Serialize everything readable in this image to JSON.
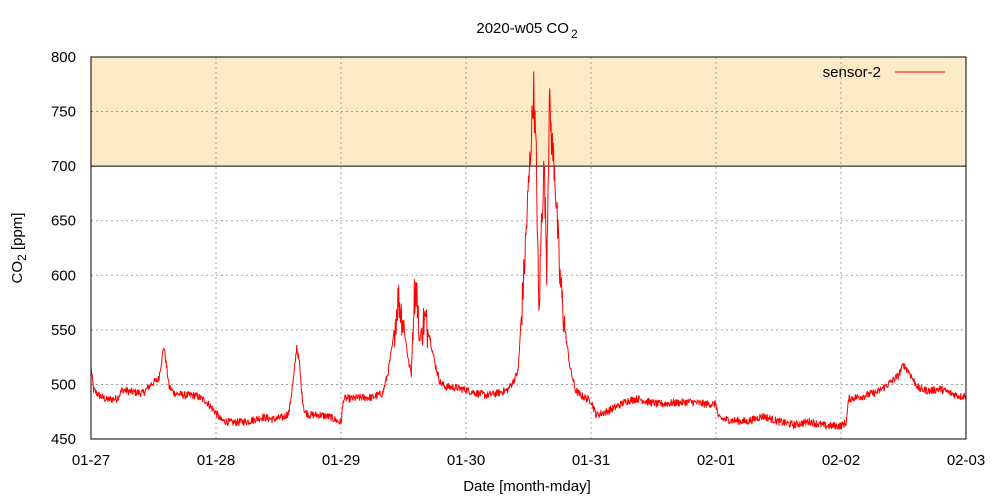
{
  "chart_data": {
    "type": "line",
    "title": "2020-w05 CO",
    "title_subscript": "2",
    "xlabel": "Date [month-mday]",
    "ylabel_main": "CO",
    "ylabel_subscript": "2",
    "ylabel_suffix": " [ppm]",
    "xlim": [
      "2020-01-27",
      "2020-02-03"
    ],
    "ylim": [
      450,
      800
    ],
    "x_ticks": [
      "01-27",
      "01-28",
      "01-29",
      "01-30",
      "01-31",
      "02-01",
      "02-02",
      "02-03"
    ],
    "y_ticks": [
      450,
      500,
      550,
      600,
      650,
      700,
      750,
      800
    ],
    "grid": true,
    "legend_position": "top-right",
    "threshold": {
      "from": 700,
      "to": 800,
      "color": "#fdebc8"
    },
    "threshold_line": 700,
    "series": [
      {
        "name": "sensor-2",
        "color": "#ff0000",
        "points": [
          [
            "2020-01-27 00:00",
            515
          ],
          [
            "2020-01-27 00:30",
            495
          ],
          [
            "2020-01-27 01:30",
            490
          ],
          [
            "2020-01-27 03:00",
            486
          ],
          [
            "2020-01-27 05:00",
            487
          ],
          [
            "2020-01-27 06:00",
            495
          ],
          [
            "2020-01-27 08:00",
            493
          ],
          [
            "2020-01-27 10:00",
            492
          ],
          [
            "2020-01-27 11:30",
            500
          ],
          [
            "2020-01-27 13:00",
            505
          ],
          [
            "2020-01-27 14:00",
            535
          ],
          [
            "2020-01-27 15:00",
            498
          ],
          [
            "2020-01-27 16:00",
            492
          ],
          [
            "2020-01-27 18:00",
            490
          ],
          [
            "2020-01-27 20:00",
            490
          ],
          [
            "2020-01-27 22:00",
            485
          ],
          [
            "2020-01-28 00:00",
            474
          ],
          [
            "2020-01-28 01:00",
            467
          ],
          [
            "2020-01-28 03:00",
            465
          ],
          [
            "2020-01-28 06:00",
            466
          ],
          [
            "2020-01-28 09:00",
            470
          ],
          [
            "2020-01-28 11:00",
            468
          ],
          [
            "2020-01-28 13:00",
            470
          ],
          [
            "2020-01-28 14:00",
            474
          ],
          [
            "2020-01-28 15:00",
            510
          ],
          [
            "2020-01-28 15:30",
            535
          ],
          [
            "2020-01-28 16:00",
            520
          ],
          [
            "2020-01-28 16:30",
            490
          ],
          [
            "2020-01-28 17:00",
            475
          ],
          [
            "2020-01-28 18:00",
            472
          ],
          [
            "2020-01-28 20:00",
            472
          ],
          [
            "2020-01-28 22:00",
            470
          ],
          [
            "2020-01-28 23:30",
            466
          ],
          [
            "2020-01-29 00:00",
            465
          ],
          [
            "2020-01-29 00:30",
            487
          ],
          [
            "2020-01-29 02:00",
            487
          ],
          [
            "2020-01-29 04:00",
            488
          ],
          [
            "2020-01-29 06:00",
            488
          ],
          [
            "2020-01-29 08:00",
            492
          ],
          [
            "2020-01-29 09:00",
            510
          ],
          [
            "2020-01-29 10:00",
            540
          ],
          [
            "2020-01-29 11:00",
            580
          ],
          [
            "2020-01-29 12:00",
            555
          ],
          [
            "2020-01-29 13:00",
            520
          ],
          [
            "2020-01-29 13:30",
            510
          ],
          [
            "2020-01-29 14:00",
            580
          ],
          [
            "2020-01-29 14:30",
            590
          ],
          [
            "2020-01-29 15:00",
            540
          ],
          [
            "2020-01-29 16:00",
            560
          ],
          [
            "2020-01-29 17:00",
            545
          ],
          [
            "2020-01-29 18:00",
            520
          ],
          [
            "2020-01-29 19:00",
            502
          ],
          [
            "2020-01-29 20:00",
            498
          ],
          [
            "2020-01-29 22:00",
            497
          ],
          [
            "2020-01-30 00:00",
            495
          ],
          [
            "2020-01-30 02:00",
            492
          ],
          [
            "2020-01-30 04:00",
            490
          ],
          [
            "2020-01-30 06:00",
            492
          ],
          [
            "2020-01-30 08:00",
            495
          ],
          [
            "2020-01-30 09:00",
            502
          ],
          [
            "2020-01-30 10:00",
            512
          ],
          [
            "2020-01-30 11:00",
            590
          ],
          [
            "2020-01-30 12:00",
            680
          ],
          [
            "2020-01-30 13:00",
            770
          ],
          [
            "2020-01-30 13:30",
            705
          ],
          [
            "2020-01-30 14:00",
            560
          ],
          [
            "2020-01-30 14:30",
            650
          ],
          [
            "2020-01-30 15:00",
            700
          ],
          [
            "2020-01-30 15:30",
            610
          ],
          [
            "2020-01-30 16:00",
            760
          ],
          [
            "2020-01-30 16:30",
            720
          ],
          [
            "2020-01-30 17:00",
            700
          ],
          [
            "2020-01-30 17:30",
            650
          ],
          [
            "2020-01-30 18:00",
            600
          ],
          [
            "2020-01-30 19:00",
            550
          ],
          [
            "2020-01-30 20:00",
            515
          ],
          [
            "2020-01-30 21:00",
            495
          ],
          [
            "2020-01-30 22:00",
            490
          ],
          [
            "2020-01-31 00:00",
            485
          ],
          [
            "2020-01-31 01:00",
            472
          ],
          [
            "2020-01-31 03:00",
            475
          ],
          [
            "2020-01-31 05:00",
            480
          ],
          [
            "2020-01-31 07:00",
            485
          ],
          [
            "2020-01-31 09:00",
            487
          ],
          [
            "2020-01-31 11:00",
            484
          ],
          [
            "2020-01-31 13:00",
            482
          ],
          [
            "2020-01-31 16:00",
            483
          ],
          [
            "2020-01-31 19:00",
            484
          ],
          [
            "2020-01-31 22:00",
            482
          ],
          [
            "2020-02-01 00:00",
            482
          ],
          [
            "2020-02-01 00:30",
            469
          ],
          [
            "2020-02-01 03:00",
            467
          ],
          [
            "2020-02-01 06:00",
            466
          ],
          [
            "2020-02-01 09:00",
            471
          ],
          [
            "2020-02-01 12:00",
            466
          ],
          [
            "2020-02-01 15:00",
            463
          ],
          [
            "2020-02-01 18:00",
            466
          ],
          [
            "2020-02-01 21:00",
            462
          ],
          [
            "2020-02-02 00:00",
            462
          ],
          [
            "2020-02-02 01:00",
            465
          ],
          [
            "2020-02-02 01:30",
            487
          ],
          [
            "2020-02-02 04:00",
            489
          ],
          [
            "2020-02-02 07:00",
            493
          ],
          [
            "2020-02-02 09:00",
            500
          ],
          [
            "2020-02-02 11:00",
            508
          ],
          [
            "2020-02-02 12:00",
            518
          ],
          [
            "2020-02-02 13:00",
            512
          ],
          [
            "2020-02-02 14:00",
            503
          ],
          [
            "2020-02-02 15:00",
            496
          ],
          [
            "2020-02-02 17:00",
            494
          ],
          [
            "2020-02-02 19:00",
            496
          ],
          [
            "2020-02-02 21:00",
            492
          ],
          [
            "2020-02-02 23:00",
            489
          ],
          [
            "2020-02-03 00:00",
            490
          ]
        ]
      }
    ]
  }
}
